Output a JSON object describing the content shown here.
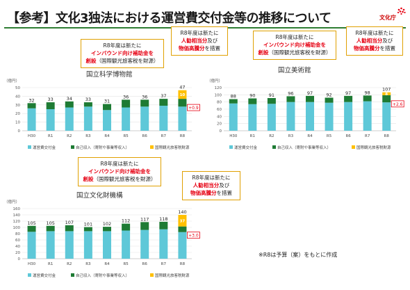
{
  "page": {
    "title": "【参考】文化3独法における運営費交付金等の推移について",
    "logo_text": "文化庁",
    "note": "※R8は予算（案）をもとに作成"
  },
  "legend": {
    "a": "運営費交付金",
    "b": "自己収入（寄附や事業等収入）",
    "c": "国際観光旅客税財源"
  },
  "callouts": {
    "inbound": {
      "line1": "R8年度は新たに",
      "line2": "インバウンド向け補助金を",
      "line3_bold": "創設",
      "line3_rest": "（国際観光旅客税を財源）"
    },
    "salary": {
      "line1": "R8年度は新たに",
      "line2a": "人勧相当分",
      "line2b": "及び",
      "line3a": "物価高騰分",
      "line3b": "を措置"
    }
  },
  "chart_data": [
    {
      "type": "bar",
      "title": "国立科学博物館",
      "unit_label": "（億円）",
      "categories": [
        "H30",
        "R1",
        "R2",
        "R3",
        "R4",
        "R5",
        "R6",
        "R7",
        "R8"
      ],
      "ylim": [
        0,
        50
      ],
      "yticks": [
        0,
        10,
        20,
        30,
        40,
        50
      ],
      "series": [
        {
          "name": "運営費交付金",
          "values": [
            26,
            25,
            27,
            28,
            24,
            27,
            28,
            29,
            28
          ],
          "color": "#5ec8d8"
        },
        {
          "name": "自己収入（寄附や事業等収入）",
          "values": [
            6,
            8,
            7,
            5,
            7,
            9,
            8,
            8,
            9
          ],
          "color": "#1e7b34"
        },
        {
          "name": "国際観光旅客税財源",
          "values": [
            0,
            0,
            0,
            0,
            0,
            0,
            0,
            0,
            10
          ],
          "color": "#ffc000"
        }
      ],
      "totals": [
        32,
        33,
        34,
        33,
        31,
        36,
        36,
        37,
        47
      ],
      "segment_labels": [
        "",
        "",
        "",
        "",
        "",
        "",
        "",
        "",
        "10"
      ],
      "delta_label": "+0.9"
    },
    {
      "type": "bar",
      "title": "国立美術館",
      "unit_label": "（億円）",
      "categories": [
        "H30",
        "R1",
        "R2",
        "R3",
        "R4",
        "R5",
        "R6",
        "R7",
        "R8"
      ],
      "ylim": [
        0,
        120
      ],
      "yticks": [
        0,
        20,
        40,
        60,
        80,
        100,
        120
      ],
      "series": [
        {
          "name": "運営費交付金",
          "values": [
            76,
            74,
            75,
            80,
            80,
            78,
            80,
            82,
            79
          ],
          "color": "#5ec8d8"
        },
        {
          "name": "自己収入（寄附や事業等収入）",
          "values": [
            12,
            16,
            16,
            16,
            17,
            14,
            17,
            16,
            20
          ],
          "color": "#1e7b34"
        },
        {
          "name": "国際観光旅客税財源",
          "values": [
            0,
            0,
            0,
            0,
            0,
            0,
            0,
            0,
            8
          ],
          "color": "#ffc000"
        }
      ],
      "totals": [
        88,
        90,
        91,
        96,
        97,
        92,
        97,
        98,
        107
      ],
      "segment_labels": [
        "",
        "",
        "",
        "",
        "",
        "",
        "",
        "",
        "8"
      ],
      "delta_label": "+2.6"
    },
    {
      "type": "bar",
      "title": "国立文化財機構",
      "unit_label": "（億円）",
      "categories": [
        "H30",
        "R1",
        "R2",
        "R3",
        "R4",
        "R5",
        "R6",
        "R7",
        "R8"
      ],
      "ylim": [
        0,
        160
      ],
      "yticks": [
        0,
        20,
        40,
        60,
        80,
        100,
        120,
        140,
        160
      ],
      "series": [
        {
          "name": "運営費交付金",
          "values": [
            86,
            88,
            88,
            88,
            88,
            90,
            92,
            94,
            85
          ],
          "color": "#5ec8d8"
        },
        {
          "name": "自己収入（寄附や事業等収入）",
          "values": [
            19,
            17,
            19,
            13,
            14,
            22,
            25,
            24,
            18
          ],
          "color": "#1e7b34"
        },
        {
          "name": "国際観光旅客税財源",
          "values": [
            0,
            0,
            0,
            0,
            0,
            0,
            0,
            0,
            37
          ],
          "color": "#ffc000"
        }
      ],
      "totals": [
        105,
        105,
        107,
        101,
        102,
        112,
        117,
        118,
        140
      ],
      "segment_labels": [
        "",
        "",
        "",
        "",
        "",
        "",
        "",
        "",
        "37"
      ],
      "delta_label": "+3.0"
    }
  ]
}
